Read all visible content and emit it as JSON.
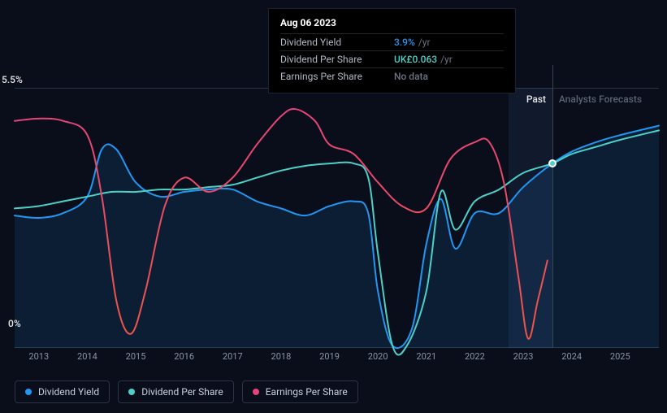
{
  "chart": {
    "type": "line",
    "background_color": "#0a0e1a",
    "grid_color": "#1a2332",
    "axis_line_color": "#2a3442",
    "y_axis": {
      "max_label": "5.5%",
      "min_label": "0%",
      "ylim": [
        0,
        5.5
      ]
    },
    "x_axis": {
      "years": [
        "2013",
        "2014",
        "2015",
        "2016",
        "2017",
        "2018",
        "2019",
        "2020",
        "2021",
        "2022",
        "2023",
        "2024",
        "2025"
      ],
      "xlim": [
        2012.5,
        2025.8
      ],
      "tick_color": "#8a94a6",
      "tick_fontsize": 11
    },
    "sections": {
      "past_label": "Past",
      "forecast_label": "Analysts Forecasts",
      "divider_year": 2023.6,
      "forecast_band_color": "rgba(60,100,150,0.15)",
      "forecast_band_start": 2022.7
    },
    "series": {
      "dividend_yield": {
        "label": "Dividend Yield",
        "color": "#2196f3",
        "area_fill": "rgba(33,150,243,0.12)",
        "line_width": 2,
        "points": [
          [
            2012.5,
            2.8
          ],
          [
            2013,
            2.75
          ],
          [
            2013.5,
            2.85
          ],
          [
            2014,
            3.2
          ],
          [
            2014.3,
            4.2
          ],
          [
            2014.6,
            4.2
          ],
          [
            2015,
            3.5
          ],
          [
            2015.5,
            3.2
          ],
          [
            2016,
            3.3
          ],
          [
            2016.5,
            3.35
          ],
          [
            2017,
            3.35
          ],
          [
            2017.5,
            3.1
          ],
          [
            2018,
            2.95
          ],
          [
            2018.5,
            2.8
          ],
          [
            2019,
            3.0
          ],
          [
            2019.5,
            3.1
          ],
          [
            2019.8,
            2.85
          ],
          [
            2020,
            1.2
          ],
          [
            2020.3,
            0.05
          ],
          [
            2020.7,
            0.4
          ],
          [
            2021,
            2.2
          ],
          [
            2021.3,
            3.15
          ],
          [
            2021.6,
            2.1
          ],
          [
            2022,
            2.85
          ],
          [
            2022.5,
            2.85
          ],
          [
            2023,
            3.4
          ],
          [
            2023.6,
            3.9
          ],
          [
            2024,
            4.15
          ],
          [
            2024.5,
            4.35
          ],
          [
            2025,
            4.5
          ],
          [
            2025.8,
            4.7
          ]
        ]
      },
      "dividend_per_share": {
        "label": "Dividend Per Share",
        "color": "#4dd0c7",
        "line_width": 2,
        "points": [
          [
            2012.5,
            2.95
          ],
          [
            2013,
            3.0
          ],
          [
            2013.5,
            3.1
          ],
          [
            2014,
            3.2
          ],
          [
            2014.5,
            3.3
          ],
          [
            2015,
            3.3
          ],
          [
            2015.5,
            3.35
          ],
          [
            2016,
            3.35
          ],
          [
            2016.5,
            3.4
          ],
          [
            2017,
            3.45
          ],
          [
            2017.5,
            3.6
          ],
          [
            2018,
            3.75
          ],
          [
            2018.5,
            3.85
          ],
          [
            2019,
            3.9
          ],
          [
            2019.5,
            3.9
          ],
          [
            2019.8,
            3.6
          ],
          [
            2020,
            2.0
          ],
          [
            2020.3,
            0.05
          ],
          [
            2020.6,
            0.05
          ],
          [
            2021,
            1.2
          ],
          [
            2021.3,
            3.3
          ],
          [
            2021.6,
            2.5
          ],
          [
            2022,
            3.1
          ],
          [
            2022.5,
            3.35
          ],
          [
            2023,
            3.7
          ],
          [
            2023.6,
            3.9
          ],
          [
            2024,
            4.1
          ],
          [
            2024.5,
            4.25
          ],
          [
            2025,
            4.4
          ],
          [
            2025.8,
            4.6
          ]
        ]
      },
      "earnings_per_share": {
        "label": "Earnings Per Share",
        "color": "#e6447a",
        "gradient_low_color": "#f05545",
        "line_width": 2,
        "points": [
          [
            2012.5,
            4.8
          ],
          [
            2013,
            4.85
          ],
          [
            2013.5,
            4.8
          ],
          [
            2014,
            4.5
          ],
          [
            2014.3,
            3.2
          ],
          [
            2014.6,
            1.0
          ],
          [
            2014.9,
            0.3
          ],
          [
            2015.2,
            1.2
          ],
          [
            2015.6,
            3.0
          ],
          [
            2016,
            3.6
          ],
          [
            2016.5,
            3.3
          ],
          [
            2017,
            3.6
          ],
          [
            2017.5,
            4.3
          ],
          [
            2018,
            4.9
          ],
          [
            2018.3,
            5.05
          ],
          [
            2018.7,
            4.8
          ],
          [
            2019,
            4.3
          ],
          [
            2019.5,
            4.1
          ],
          [
            2020,
            3.5
          ],
          [
            2020.5,
            3.0
          ],
          [
            2021,
            2.95
          ],
          [
            2021.5,
            4.0
          ],
          [
            2022,
            4.35
          ],
          [
            2022.3,
            4.35
          ],
          [
            2022.6,
            3.5
          ],
          [
            2022.9,
            1.5
          ],
          [
            2023.1,
            0.2
          ],
          [
            2023.3,
            1.0
          ],
          [
            2023.5,
            1.85
          ]
        ]
      }
    },
    "hover": {
      "x": 2023.6,
      "marker_y": 3.9,
      "marker_color": "#4dd0c7",
      "line_color": "#3a4452"
    }
  },
  "tooltip": {
    "date": "Aug 06 2023",
    "rows": [
      {
        "label": "Dividend Yield",
        "value": "3.9%",
        "unit": "/yr",
        "color": "#2196f3"
      },
      {
        "label": "Dividend Per Share",
        "value": "UK£0.063",
        "unit": "/yr",
        "color": "#4dd0c7"
      },
      {
        "label": "Earnings Per Share",
        "value": "No data",
        "unit": "",
        "color": "#6a7482"
      }
    ]
  },
  "legend": {
    "items": [
      {
        "label": "Dividend Yield",
        "color": "#2196f3"
      },
      {
        "label": "Dividend Per Share",
        "color": "#4dd0c7"
      },
      {
        "label": "Earnings Per Share",
        "color": "#e6447a"
      }
    ]
  }
}
